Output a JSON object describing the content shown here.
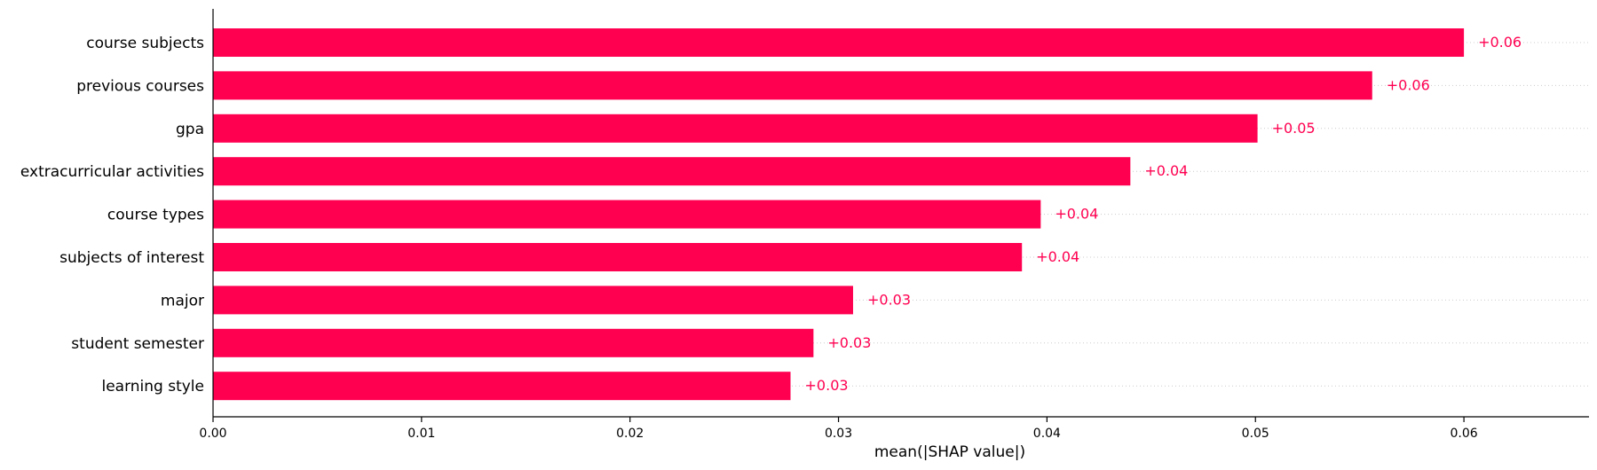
{
  "colors": {
    "bar": "#ff0051",
    "axis": "#000000",
    "grid": "#cccccc"
  },
  "chart_data": {
    "type": "bar",
    "orientation": "horizontal",
    "title": "",
    "xlabel": "mean(|SHAP value|)",
    "ylabel": "",
    "xlim": [
      0,
      0.066
    ],
    "xticks": [
      "0.00",
      "0.01",
      "0.02",
      "0.03",
      "0.04",
      "0.05",
      "0.06"
    ],
    "xtick_values": [
      0,
      0.01,
      0.02,
      0.03,
      0.04,
      0.05,
      0.06
    ],
    "grid": "dotted horizontal guide lines per bar",
    "categories": [
      "course subjects",
      "previous courses",
      "gpa",
      "extracurricular activities",
      "course types",
      "subjects of interest",
      "major",
      "student semester",
      "learning style"
    ],
    "values": [
      0.06,
      0.0556,
      0.0501,
      0.044,
      0.0397,
      0.0388,
      0.0307,
      0.0288,
      0.0277
    ],
    "value_labels": [
      "+0.06",
      "+0.06",
      "+0.05",
      "+0.04",
      "+0.04",
      "+0.04",
      "+0.03",
      "+0.03",
      "+0.03"
    ]
  }
}
